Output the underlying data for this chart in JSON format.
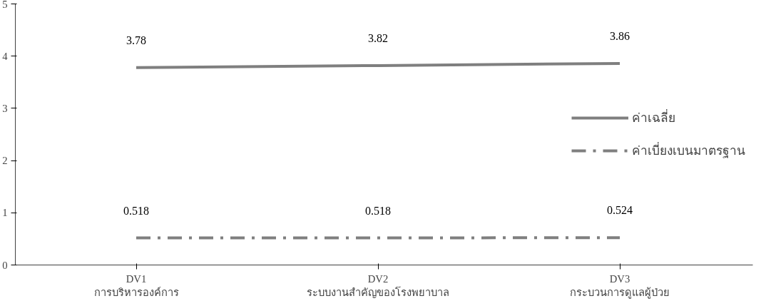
{
  "chart_data": {
    "type": "line",
    "categories": [
      "DV1\nการบริหารองค์การ",
      "DV2\nระบบงานสำคัญของโรงพยาบาล",
      "DV3\nกระบวนการดูแลผู้ป่วย"
    ],
    "series": [
      {
        "name": "ค่าเฉลี่ย",
        "color": "#7f7f7f",
        "values": [
          3.78,
          3.82,
          3.86
        ],
        "line_style": "solid"
      },
      {
        "name": "ค่าเบี่ยงเบนมาตรฐาน",
        "color": "#7f7f7f",
        "values": [
          0.518,
          0.518,
          0.524
        ],
        "line_style": "dashdot"
      }
    ],
    "ylim": [
      0,
      5
    ],
    "yticks": [
      0,
      1,
      2,
      3,
      4,
      5
    ],
    "data_labels": true,
    "grid": false,
    "legend": "right",
    "marker": "none"
  }
}
